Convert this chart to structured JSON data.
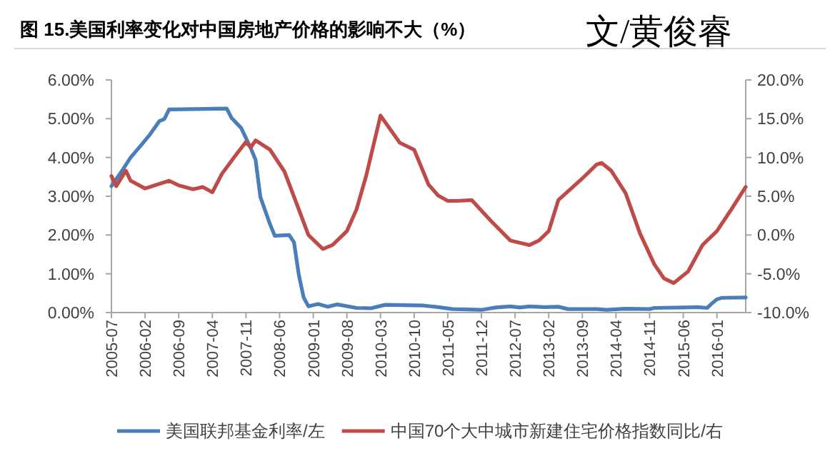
{
  "chart_data": {
    "type": "line",
    "title": "图 15.美国利率变化对中国房地产价格的影响不大（%）",
    "annotations": [
      "文/黄俊睿"
    ],
    "xlim": [
      "2005-07",
      "2016-07"
    ],
    "xticks": [
      "2005-07",
      "2006-02",
      "2006-09",
      "2007-04",
      "2007-11",
      "2008-06",
      "2009-01",
      "2009-08",
      "2010-03",
      "2010-10",
      "2011-05",
      "2011-12",
      "2012-07",
      "2013-02",
      "2013-09",
      "2014-04",
      "2014-11",
      "2015-06",
      "2016-01"
    ],
    "ylim": [
      0,
      6
    ],
    "yticks": [
      {
        "value": 0,
        "label": "0.00%"
      },
      {
        "value": 1,
        "label": "1.00%"
      },
      {
        "value": 2,
        "label": "2.00%"
      },
      {
        "value": 3,
        "label": "3.00%"
      },
      {
        "value": 4,
        "label": "4.00%"
      },
      {
        "value": 5,
        "label": "5.00%"
      },
      {
        "value": 6,
        "label": "6.00%"
      }
    ],
    "y2lim": [
      -10,
      20
    ],
    "y2ticks": [
      {
        "value": -10,
        "label": "-10.0%"
      },
      {
        "value": -5,
        "label": "-5.0%"
      },
      {
        "value": 0,
        "label": "0.0%"
      },
      {
        "value": 5,
        "label": "5.0%"
      },
      {
        "value": 10,
        "label": "10.0%"
      },
      {
        "value": 15,
        "label": "15.0%"
      },
      {
        "value": 20,
        "label": "20.0%"
      }
    ],
    "grid": false,
    "legend": "bottom",
    "marker": "none",
    "line_style": "solid",
    "series": [
      {
        "name": "美国联邦基金利率/左",
        "color": "#4a7ebb",
        "x": [
          "2005-07",
          "2005-09",
          "2005-11",
          "2006-01",
          "2006-03",
          "2006-05",
          "2006-06",
          "2006-07",
          "2007-07",
          "2007-08",
          "2007-10",
          "2007-12",
          "2008-01",
          "2008-02",
          "2008-04",
          "2008-05",
          "2008-08",
          "2008-09",
          "2008-10",
          "2008-11",
          "2008-12",
          "2009-02",
          "2009-04",
          "2009-06",
          "2009-10",
          "2010-01",
          "2010-04",
          "2010-12",
          "2011-03",
          "2011-06",
          "2011-12",
          "2012-03",
          "2012-06",
          "2012-08",
          "2012-10",
          "2013-01",
          "2013-04",
          "2013-06",
          "2013-12",
          "2014-02",
          "2014-06",
          "2014-11",
          "2014-12",
          "2015-06",
          "2015-09",
          "2015-11",
          "2015-12",
          "2016-01",
          "2016-02",
          "2016-07"
        ],
        "values": [
          3.26,
          3.62,
          4.0,
          4.29,
          4.59,
          4.94,
          4.99,
          5.24,
          5.26,
          5.02,
          4.76,
          4.24,
          3.94,
          2.98,
          2.28,
          1.98,
          2.0,
          1.81,
          0.97,
          0.39,
          0.16,
          0.22,
          0.15,
          0.21,
          0.12,
          0.11,
          0.2,
          0.18,
          0.14,
          0.09,
          0.07,
          0.13,
          0.16,
          0.13,
          0.16,
          0.14,
          0.15,
          0.09,
          0.09,
          0.07,
          0.1,
          0.09,
          0.12,
          0.13,
          0.14,
          0.12,
          0.24,
          0.34,
          0.38,
          0.39
        ]
      },
      {
        "name": "中国70个大中城市新建住宅价格指数同比/右",
        "color": "#be4b48",
        "axis": "y2",
        "x": [
          "2005-07",
          "2005-08",
          "2005-10",
          "2005-11",
          "2006-02",
          "2006-04",
          "2006-07",
          "2006-09",
          "2006-12",
          "2007-02",
          "2007-04",
          "2007-06",
          "2007-09",
          "2007-11",
          "2007-12",
          "2008-01",
          "2008-04",
          "2008-07",
          "2008-10",
          "2008-12",
          "2009-03",
          "2009-05",
          "2009-08",
          "2009-10",
          "2009-12",
          "2010-03",
          "2010-07",
          "2010-10",
          "2011-01",
          "2011-03",
          "2011-05",
          "2011-07",
          "2011-10",
          "2012-02",
          "2012-06",
          "2012-10",
          "2012-12",
          "2013-02",
          "2013-04",
          "2013-09",
          "2013-12",
          "2014-01",
          "2014-03",
          "2014-06",
          "2014-09",
          "2014-12",
          "2015-02",
          "2015-04",
          "2015-07",
          "2015-10",
          "2016-01",
          "2016-04",
          "2016-07"
        ],
        "values": [
          7.6,
          6.3,
          8.3,
          7.0,
          6.0,
          6.4,
          7.0,
          6.4,
          5.9,
          6.2,
          5.5,
          7.9,
          10.4,
          12.0,
          11.3,
          12.2,
          11.0,
          8.2,
          3.3,
          0.0,
          -1.8,
          -1.3,
          0.5,
          3.3,
          7.6,
          15.4,
          11.9,
          11.0,
          6.5,
          5.1,
          4.4,
          4.4,
          4.5,
          1.8,
          -0.7,
          -1.3,
          -0.7,
          0.5,
          4.5,
          7.3,
          9.1,
          9.3,
          8.3,
          5.4,
          0.2,
          -3.8,
          -5.6,
          -6.2,
          -4.7,
          -1.3,
          0.5,
          3.3,
          6.2
        ]
      }
    ]
  }
}
